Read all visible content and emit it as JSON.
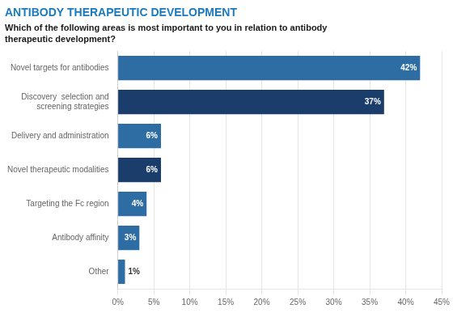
{
  "chart_data": {
    "type": "bar",
    "orientation": "horizontal",
    "title": "ANTIBODY THERAPEUTIC DEVELOPMENT",
    "subtitle": "Which of the following areas is most important to you in relation to antibody\ntherapeutic development?",
    "categories": [
      "Novel targets for antibodies",
      "Discovery  selection and\nscreening strategies",
      "Delivery and administration",
      "Novel therapeutic modalities",
      "Targeting the Fc region",
      "Antibody affinity",
      "Other"
    ],
    "values": [
      42,
      37,
      6,
      6,
      4,
      3,
      1
    ],
    "value_labels": [
      "42%",
      "37%",
      "6%",
      "6%",
      "4%",
      "3%",
      "1%"
    ],
    "data_labels": true,
    "colors": [
      "#2e6da4",
      "#1a3d6b",
      "#2e6da4",
      "#1a3d6b",
      "#2e6da4",
      "#2e6da4",
      "#2e6da4"
    ],
    "xlim": [
      0,
      45
    ],
    "xticks": [
      {
        "value": 0,
        "label": "0%"
      },
      {
        "value": 5,
        "label": "5%"
      },
      {
        "value": 10,
        "label": "10%"
      },
      {
        "value": 15,
        "label": "15%"
      },
      {
        "value": 20,
        "label": "20%"
      },
      {
        "value": 25,
        "label": "25%"
      },
      {
        "value": 30,
        "label": "30%"
      },
      {
        "value": 35,
        "label": "35%"
      },
      {
        "value": 40,
        "label": "40%"
      },
      {
        "value": 45,
        "label": "45%"
      }
    ],
    "grid": true
  }
}
